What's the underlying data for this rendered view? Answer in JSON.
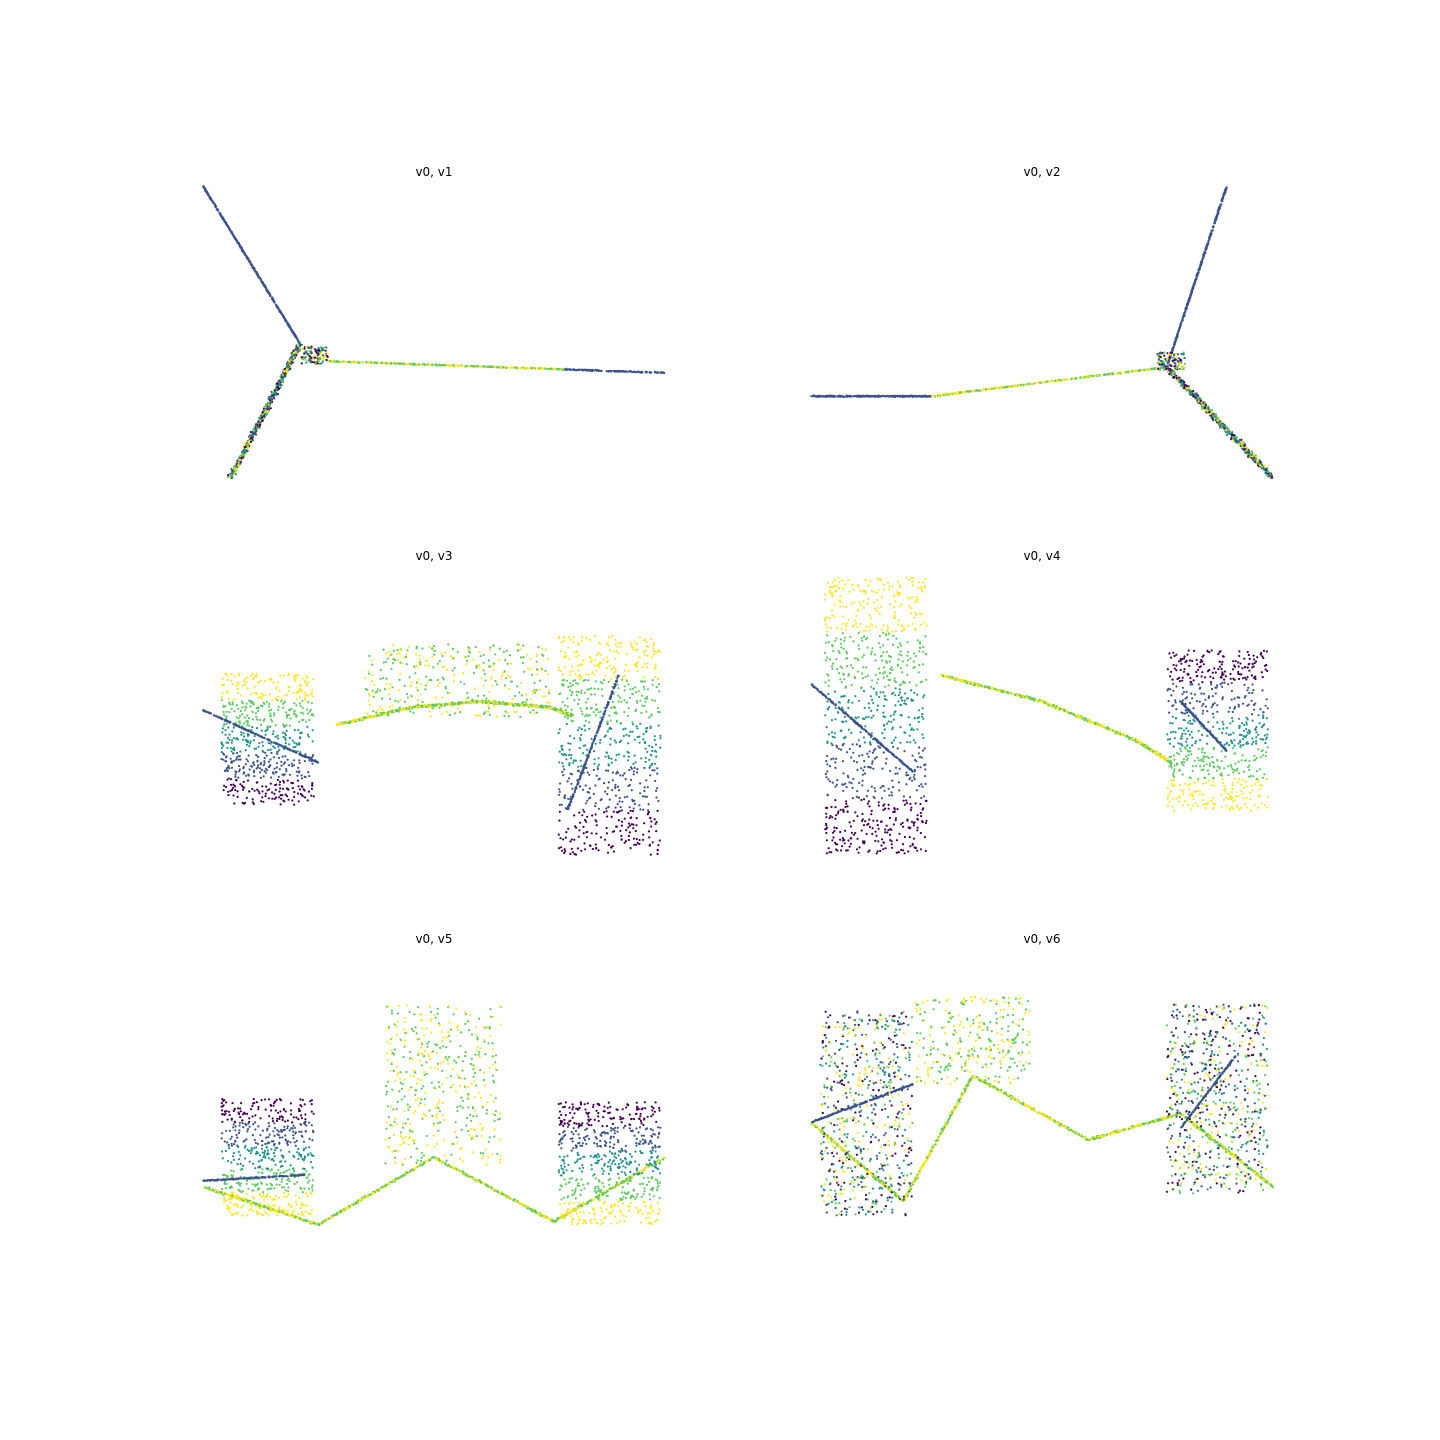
{
  "figure": {
    "colormap": "viridis",
    "colors": [
      "#440154",
      "#3b528b",
      "#21918c",
      "#5ec962",
      "#fde725"
    ],
    "axes_visible": false
  },
  "chart_data": [
    {
      "type": "scatter",
      "title": "v0, v1",
      "shape": "spokes",
      "pts": [
        [
          0.0,
          1.0
        ],
        [
          0.21,
          0.46
        ],
        [
          0.27,
          0.4
        ],
        [
          1.0,
          0.36
        ],
        [
          0.06,
          0.0
        ]
      ]
    },
    {
      "type": "scatter",
      "title": "v0, v2",
      "shape": "spokes",
      "pts": [
        [
          0.0,
          0.28
        ],
        [
          0.26,
          0.28
        ],
        [
          0.77,
          0.38
        ],
        [
          0.9,
          1.0
        ],
        [
          1.0,
          0.0
        ]
      ]
    },
    {
      "type": "scatter",
      "title": "v0, v3",
      "shape": "curve",
      "curve": [
        [
          0.29,
          0.47
        ],
        [
          0.45,
          0.53
        ],
        [
          0.6,
          0.55
        ],
        [
          0.75,
          0.53
        ],
        [
          0.8,
          0.5
        ]
      ]
    },
    {
      "type": "scatter",
      "title": "v0, v4",
      "shape": "curve",
      "curve": [
        [
          0.28,
          0.64
        ],
        [
          0.5,
          0.55
        ],
        [
          0.7,
          0.42
        ],
        [
          0.78,
          0.34
        ]
      ]
    },
    {
      "type": "scatter",
      "title": "v0, v5",
      "shape": "curve",
      "curve": [
        [
          0.0,
          0.2
        ],
        [
          0.25,
          0.07
        ],
        [
          0.5,
          0.3
        ],
        [
          0.76,
          0.08
        ],
        [
          1.0,
          0.3
        ]
      ]
    },
    {
      "type": "scatter",
      "title": "v0, v6",
      "shape": "curve",
      "curve": [
        [
          0.0,
          0.42
        ],
        [
          0.2,
          0.15
        ],
        [
          0.35,
          0.58
        ],
        [
          0.6,
          0.36
        ],
        [
          0.8,
          0.45
        ],
        [
          1.0,
          0.2
        ]
      ]
    }
  ]
}
